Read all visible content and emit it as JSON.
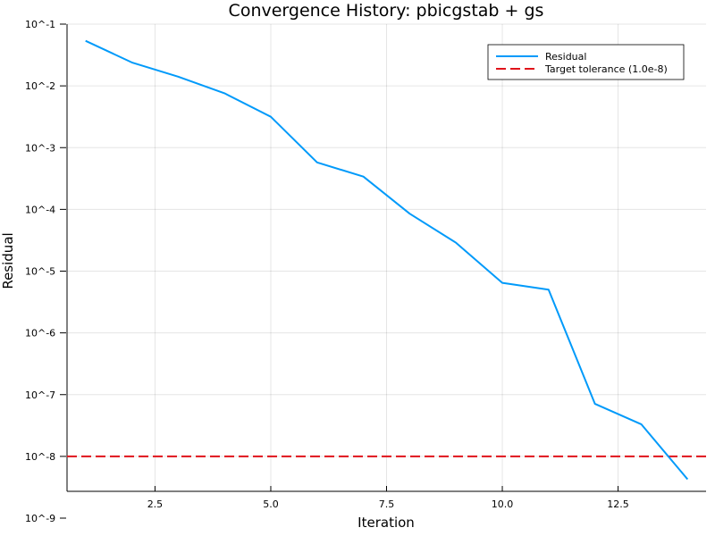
{
  "chart_data": {
    "type": "line",
    "title": "Convergence History: pbicgstab + gs",
    "xlabel": "Iteration",
    "ylabel": "Residual",
    "yscale": "log10",
    "grid": true,
    "legend_position": "top-right",
    "xlim": [
      0.6,
      14.4
    ],
    "ylim_exponents": [
      -9,
      -1
    ],
    "x_ticks": [
      2.5,
      5.0,
      7.5,
      10.0,
      12.5
    ],
    "x_tick_labels": [
      "2.5",
      "5.0",
      "7.5",
      "10.0",
      "12.5"
    ],
    "y_ticks": [
      -1,
      -2,
      -3,
      -4,
      -5,
      -6,
      -7,
      -8,
      -9
    ],
    "y_tick_labels": [
      "10^-1",
      "10^-2",
      "10^-3",
      "10^-4",
      "10^-5",
      "10^-6",
      "10^-7",
      "10^-8",
      "10^-9"
    ],
    "series": [
      {
        "name": "Residual",
        "color": "#009AFA",
        "style": "solid",
        "x": [
          1,
          2,
          3,
          4,
          5,
          6,
          7,
          8,
          9,
          10,
          11,
          12,
          13,
          14
        ],
        "log10_values": [
          -1.27,
          -1.62,
          -1.85,
          -2.12,
          -2.5,
          -3.24,
          -3.47,
          -4.07,
          -4.54,
          -5.19,
          -5.3,
          -7.15,
          -7.48,
          -8.37
        ]
      }
    ],
    "reference_lines": [
      {
        "name": "Target tolerance (1.0e-8)",
        "color": "#E0131A",
        "style": "dashed",
        "value": 1e-08,
        "log10_value": -8
      }
    ]
  }
}
